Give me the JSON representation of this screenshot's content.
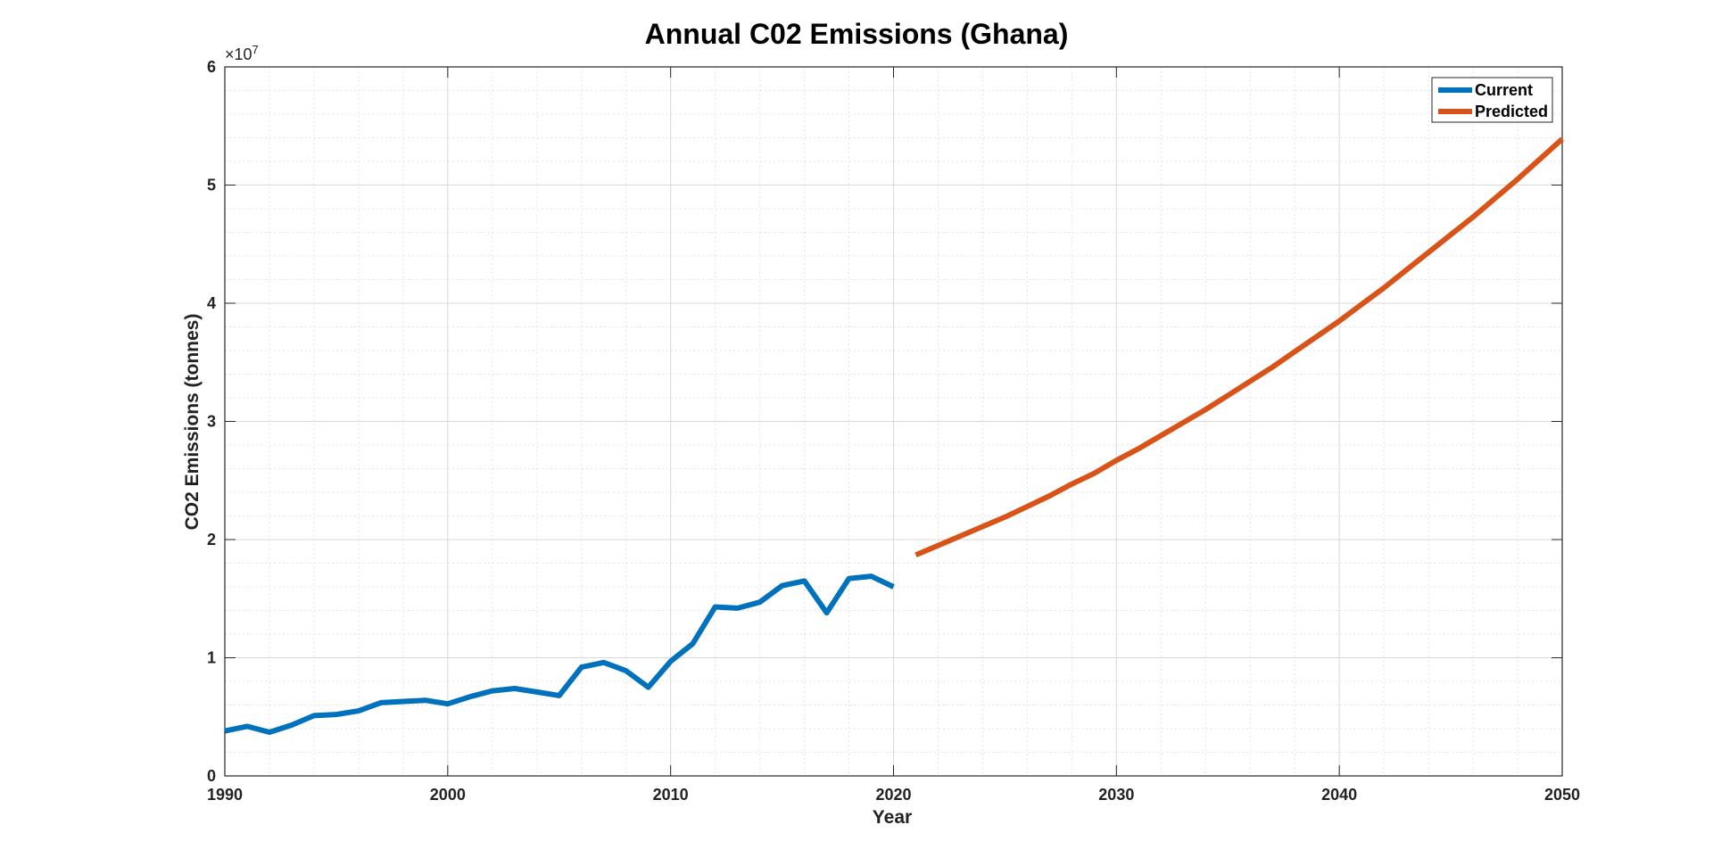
{
  "chart_data": {
    "type": "line",
    "title": "Annual C02 Emissions (Ghana)",
    "xlabel": "Year",
    "ylabel": "CO2 Emissions (tonnes)",
    "y_exponent_label": "×10",
    "y_exponent": "7",
    "xlim": [
      1990,
      2050
    ],
    "ylim": [
      0,
      60000000
    ],
    "x_ticks": [
      1990,
      2000,
      2010,
      2020,
      2030,
      2040,
      2050
    ],
    "y_ticks": [
      0,
      10000000,
      20000000,
      30000000,
      40000000,
      50000000,
      60000000
    ],
    "y_tick_labels": [
      "0",
      "1",
      "2",
      "3",
      "4",
      "5",
      "6"
    ],
    "grid": true,
    "minor_grid": true,
    "legend_position": "top-right",
    "series": [
      {
        "name": "Current",
        "color": "#0072BD",
        "x": [
          1990,
          1991,
          1992,
          1993,
          1994,
          1995,
          1996,
          1997,
          1998,
          1999,
          2000,
          2001,
          2002,
          2003,
          2004,
          2005,
          2006,
          2007,
          2008,
          2009,
          2010,
          2011,
          2012,
          2013,
          2014,
          2015,
          2016,
          2017,
          2018,
          2019,
          2020
        ],
        "y": [
          3800000,
          4200000,
          3700000,
          4300000,
          5100000,
          5200000,
          5500000,
          6200000,
          6300000,
          6400000,
          6100000,
          6700000,
          7200000,
          7400000,
          7100000,
          6800000,
          9200000,
          9600000,
          8900000,
          7500000,
          9700000,
          11200000,
          14300000,
          14200000,
          14700000,
          16100000,
          16500000,
          13800000,
          16700000,
          16900000,
          16000000
        ]
      },
      {
        "name": "Predicted",
        "color": "#D95319",
        "x": [
          2021,
          2022,
          2023,
          2024,
          2025,
          2026,
          2027,
          2028,
          2029,
          2030,
          2031,
          2032,
          2033,
          2034,
          2035,
          2036,
          2037,
          2038,
          2039,
          2040,
          2041,
          2042,
          2043,
          2044,
          2045,
          2046,
          2047,
          2048,
          2049,
          2050
        ],
        "y": [
          18700000,
          19500000,
          20300000,
          21100000,
          21900000,
          22800000,
          23700000,
          24700000,
          25600000,
          26700000,
          27700000,
          28800000,
          29900000,
          31000000,
          32200000,
          33400000,
          34600000,
          35900000,
          37200000,
          38500000,
          39900000,
          41300000,
          42800000,
          44300000,
          45800000,
          47300000,
          48900000,
          50500000,
          52200000,
          53900000
        ]
      }
    ]
  }
}
